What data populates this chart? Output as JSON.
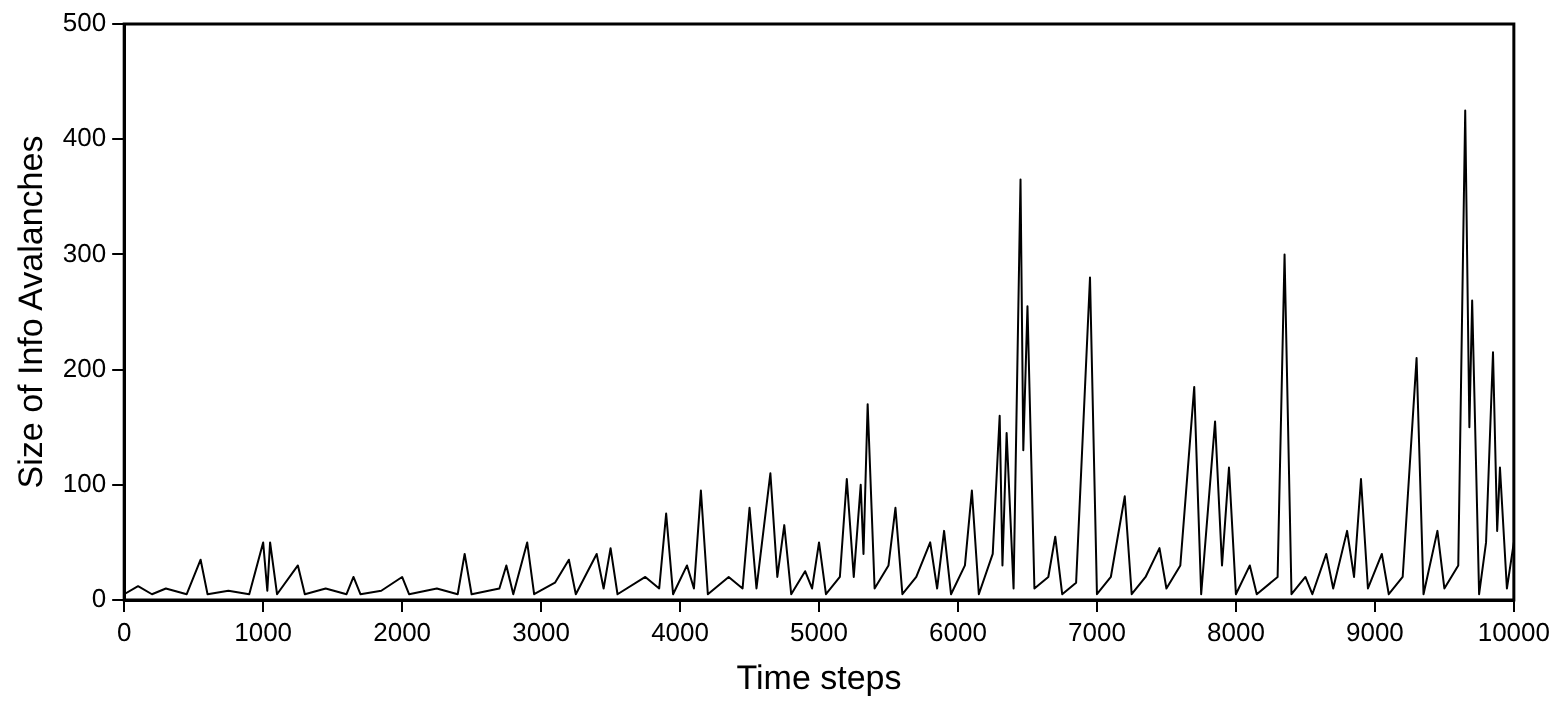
{
  "chart_data": {
    "type": "line",
    "xlabel": "Time steps",
    "ylabel": "Size of Info Avalanches",
    "x": [
      0,
      100,
      200,
      300,
      450,
      550,
      600,
      750,
      900,
      1000,
      1030,
      1050,
      1100,
      1250,
      1300,
      1450,
      1600,
      1650,
      1700,
      1850,
      2000,
      2050,
      2250,
      2400,
      2450,
      2500,
      2700,
      2750,
      2800,
      2900,
      2950,
      3100,
      3200,
      3250,
      3400,
      3450,
      3500,
      3550,
      3750,
      3850,
      3900,
      3950,
      4050,
      4100,
      4150,
      4200,
      4350,
      4450,
      4500,
      4550,
      4650,
      4700,
      4750,
      4800,
      4900,
      4950,
      5000,
      5050,
      5150,
      5200,
      5250,
      5300,
      5320,
      5350,
      5400,
      5500,
      5550,
      5600,
      5700,
      5800,
      5850,
      5900,
      5950,
      6050,
      6100,
      6150,
      6250,
      6300,
      6320,
      6350,
      6400,
      6450,
      6470,
      6500,
      6550,
      6650,
      6700,
      6750,
      6850,
      6950,
      7000,
      7100,
      7200,
      7250,
      7350,
      7450,
      7500,
      7600,
      7700,
      7750,
      7850,
      7900,
      7950,
      8000,
      8100,
      8150,
      8300,
      8350,
      8400,
      8500,
      8550,
      8650,
      8700,
      8800,
      8850,
      8900,
      8950,
      9050,
      9100,
      9200,
      9300,
      9350,
      9450,
      9500,
      9600,
      9650,
      9680,
      9700,
      9750,
      9800,
      9850,
      9880,
      9900,
      9950,
      10000
    ],
    "series": [
      {
        "color": "#000000",
        "values": [
          5,
          12,
          5,
          10,
          5,
          35,
          5,
          8,
          5,
          50,
          8,
          50,
          5,
          30,
          5,
          10,
          5,
          20,
          5,
          8,
          20,
          5,
          10,
          5,
          40,
          5,
          10,
          30,
          5,
          50,
          5,
          15,
          35,
          5,
          40,
          10,
          45,
          5,
          20,
          10,
          75,
          5,
          30,
          10,
          95,
          5,
          20,
          10,
          80,
          10,
          110,
          20,
          65,
          5,
          25,
          10,
          50,
          5,
          20,
          105,
          20,
          100,
          40,
          170,
          10,
          30,
          80,
          5,
          20,
          50,
          10,
          60,
          5,
          30,
          95,
          5,
          40,
          160,
          30,
          145,
          10,
          365,
          130,
          255,
          10,
          20,
          55,
          5,
          15,
          280,
          5,
          20,
          90,
          5,
          20,
          45,
          10,
          30,
          185,
          5,
          155,
          30,
          115,
          5,
          30,
          5,
          20,
          300,
          5,
          20,
          5,
          40,
          10,
          60,
          20,
          105,
          10,
          40,
          5,
          20,
          210,
          5,
          60,
          10,
          30,
          425,
          150,
          260,
          5,
          50,
          215,
          60,
          115,
          10,
          50
        ]
      }
    ],
    "xlim": [
      0,
      10000
    ],
    "xticks": [
      0,
      1000,
      2000,
      3000,
      4000,
      5000,
      6000,
      7000,
      8000,
      9000,
      10000
    ],
    "ylim": [
      0,
      500
    ],
    "yticks": [
      0,
      100,
      200,
      300,
      400,
      500
    ],
    "grid": false,
    "legend": false,
    "marker": "none",
    "line_style": "solid"
  }
}
